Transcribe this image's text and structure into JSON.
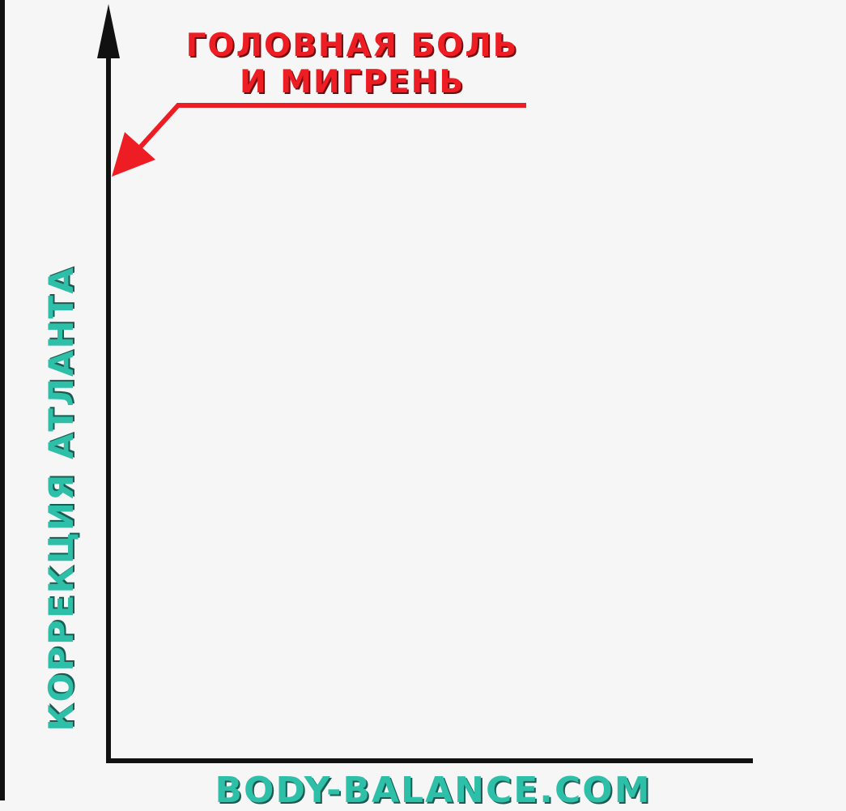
{
  "chart_data": {
    "type": "line",
    "title": "",
    "xlabel": "",
    "ylabel": "КОРРЕКЦИЯ АТЛАНТА",
    "series": [],
    "grid": false,
    "annotations": [
      {
        "lines": [
          "ГОЛОВНАЯ БОЛЬ",
          "И МИГРЕНЬ"
        ],
        "color": "#ee1d24",
        "target": "y-axis"
      }
    ]
  },
  "branding": {
    "text": "BODY-BALANCE.COM",
    "color": "#2dbfa8"
  },
  "colors": {
    "axis": "#111111",
    "annotation": "#ee1d24",
    "label": "#2dbfa8",
    "background": "#f7f6f6"
  }
}
